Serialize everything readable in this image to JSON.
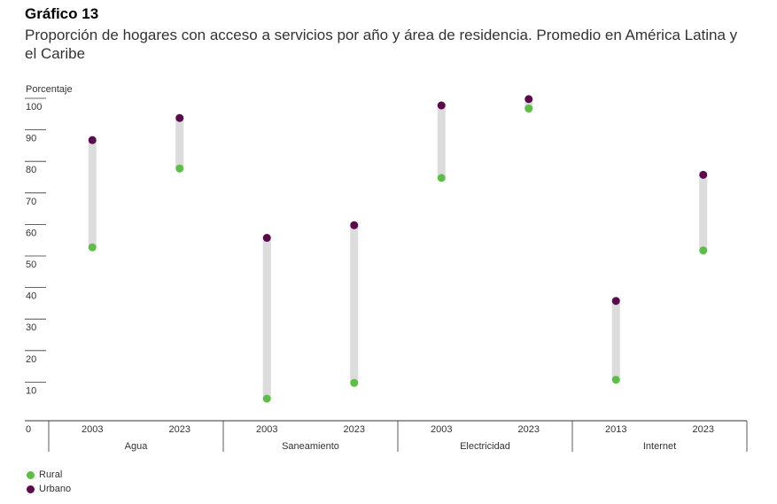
{
  "figure_label": "Gráfico 13",
  "title": "Proporción de hogares con acceso a servicios por año y área de residencia. Promedio en América Latina y el Caribe",
  "colors": {
    "rural": "#5bbf45",
    "urbano": "#5b0a4d",
    "range_bar": "#dcdcdc",
    "axis": "#333333"
  },
  "chart_data": {
    "type": "dumbbell",
    "ylabel": "Porcentaje",
    "y_ticks": [
      "0",
      "10",
      "20",
      "30",
      "40",
      "50",
      "60",
      "70",
      "80",
      "90",
      "100"
    ],
    "ylim": [
      0,
      100
    ],
    "groups": [
      {
        "name": "Agua",
        "years": [
          "2003",
          "2023"
        ]
      },
      {
        "name": "Saneamiento",
        "years": [
          "2003",
          "2023"
        ]
      },
      {
        "name": "Electricidad",
        "years": [
          "2003",
          "2023"
        ]
      },
      {
        "name": "Internet",
        "years": [
          "2013",
          "2023"
        ]
      }
    ],
    "categories": [
      "2003",
      "2023",
      "2003",
      "2023",
      "2003",
      "2023",
      "2013",
      "2023"
    ],
    "series": [
      {
        "name": "Rural",
        "values": [
          55,
          80,
          7,
          12,
          77,
          99,
          13,
          54
        ]
      },
      {
        "name": "Urbano",
        "values": [
          89,
          96,
          58,
          62,
          100,
          102,
          38,
          78
        ]
      }
    ],
    "legend": [
      "Rural",
      "Urbano"
    ],
    "legend_position": "bottom-left"
  }
}
